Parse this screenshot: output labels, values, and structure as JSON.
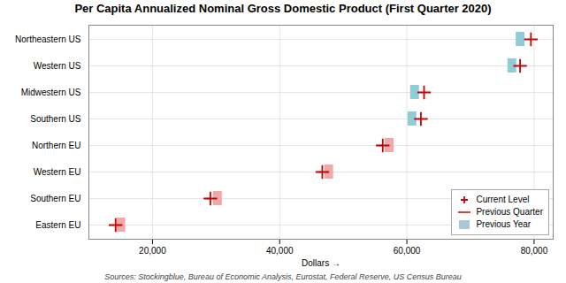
{
  "chart_data": {
    "type": "dot",
    "orientation": "horizontal",
    "title": "Per Capita Annualized Nominal Gross Domestic Product (First Quarter 2020)",
    "xlabel": "Dollars",
    "annotations": [
      "Sources: Stockingblue, Bureau of Economic Analysis, Eurostat, Federal Reserve, US Census Bureau"
    ],
    "categories": [
      "Northeastern US",
      "Western US",
      "Midwestern US",
      "Southern US",
      "Northern EU",
      "Western EU",
      "Southern EU",
      "Eastern EU"
    ],
    "series": [
      {
        "name": "Current Level",
        "type": "dot",
        "marker": "plus",
        "color": "#cc0000",
        "values": [
          79500,
          77800,
          62700,
          62200,
          56200,
          46700,
          29100,
          14200
        ]
      },
      {
        "name": "Previous Quarter",
        "type": "line",
        "line_style": "solid",
        "color": "#cc0000",
        "values": [
          79500,
          77800,
          62700,
          62200,
          55700,
          46200,
          28600,
          14200
        ]
      },
      {
        "name": "Previous Year",
        "type": "bar",
        "color": "#a8c8d8",
        "colors": [
          "#90ccd8",
          "#90ccd8",
          "#90ccd8",
          "#90ccd8",
          "#f0a8a8",
          "#f0a8a8",
          "#f0a8a8",
          "#f0a8a8"
        ],
        "values": [
          77800,
          76500,
          61200,
          60800,
          57200,
          47700,
          30200,
          15000
        ]
      }
    ],
    "xlim": [
      10000,
      83000
    ],
    "xticks": [
      {
        "value": 20000,
        "label": "20,000"
      },
      {
        "value": 40000,
        "label": "40,000"
      },
      {
        "value": 60000,
        "label": "60,000"
      },
      {
        "value": 80000,
        "label": "80,000"
      }
    ],
    "grid": true,
    "legend": "lower right"
  }
}
